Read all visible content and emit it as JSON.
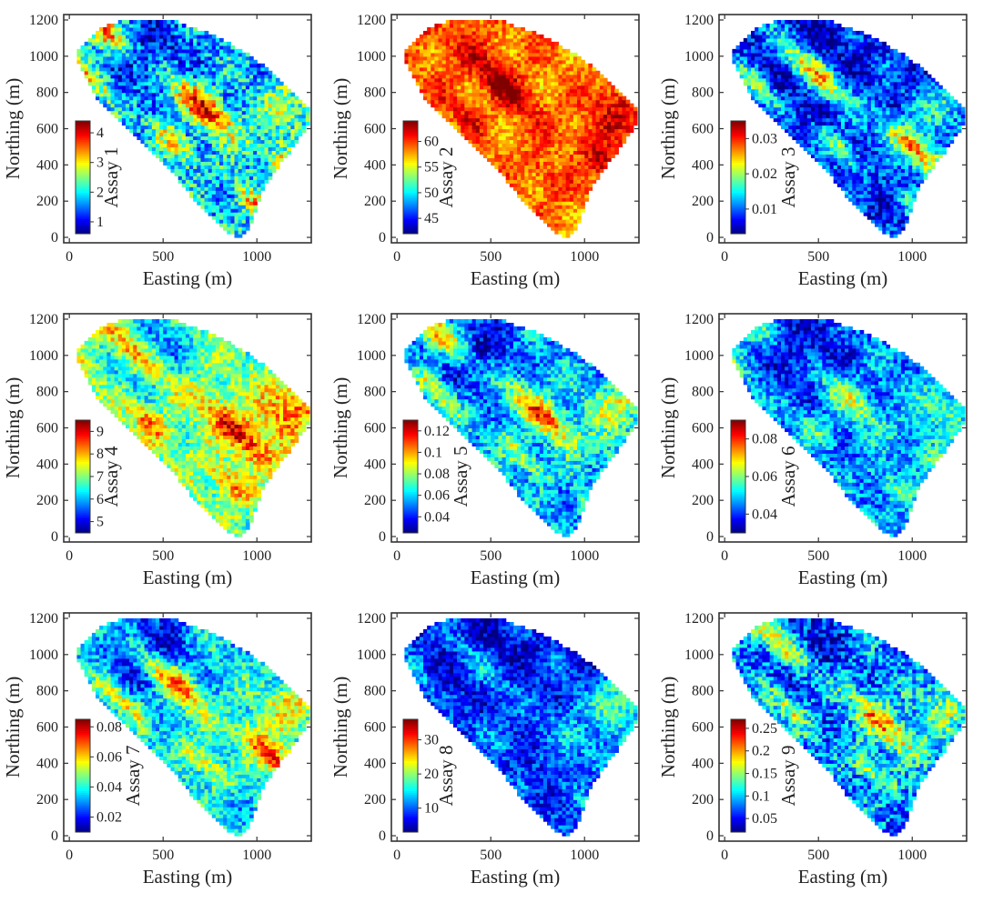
{
  "figure": {
    "colormap": "jet",
    "background": "#ffffff",
    "frame_color": "#333333"
  },
  "chart_data": [
    {
      "type": "heatmap",
      "xlabel": "Easting (m)",
      "ylabel": "Northing (m)",
      "xlim": [
        -30,
        1290
      ],
      "ylim": [
        -30,
        1230
      ],
      "xticks": [
        0,
        500,
        1000
      ],
      "yticks": [
        0,
        200,
        400,
        600,
        800,
        1000,
        1200
      ],
      "colorbar": {
        "label": "Assay 1",
        "range": [
          0.6,
          4.4
        ],
        "ticks": [
          1,
          2,
          3,
          4
        ],
        "tick_labels": [
          "1",
          "2",
          "3",
          "4"
        ]
      },
      "field": {
        "base": 0.32,
        "band": 0.55,
        "hot": 0.22,
        "cold": 0.25,
        "noise": 0.18
      }
    },
    {
      "type": "heatmap",
      "xlabel": "Easting (m)",
      "ylabel": "Northing (m)",
      "xlim": [
        -30,
        1290
      ],
      "ylim": [
        -30,
        1230
      ],
      "xticks": [
        0,
        500,
        1000
      ],
      "yticks": [
        0,
        200,
        400,
        600,
        800,
        1000,
        1200
      ],
      "colorbar": {
        "label": "Assay 2",
        "range": [
          42,
          64
        ],
        "ticks": [
          45,
          50,
          55,
          60
        ],
        "tick_labels": [
          "45",
          "50",
          "55",
          "60"
        ]
      },
      "field": {
        "base": 0.74,
        "band": 0.22,
        "hot": 0.18,
        "cold": -0.05,
        "noise": 0.1
      }
    },
    {
      "type": "heatmap",
      "xlabel": "Easting (m)",
      "ylabel": "Northing (m)",
      "xlim": [
        -30,
        1290
      ],
      "ylim": [
        -30,
        1230
      ],
      "xticks": [
        0,
        500,
        1000
      ],
      "yticks": [
        0,
        200,
        400,
        600,
        800,
        1000,
        1200
      ],
      "colorbar": {
        "label": "Assay 3",
        "range": [
          0.003,
          0.035
        ],
        "ticks": [
          0.01,
          0.02,
          0.03
        ],
        "tick_labels": [
          "0.01",
          "0.02",
          "0.03"
        ]
      },
      "field": {
        "base": 0.16,
        "band": 0.6,
        "hot": 0.25,
        "cold": 0.12,
        "noise": 0.15
      }
    },
    {
      "type": "heatmap",
      "xlabel": "Easting (m)",
      "ylabel": "Northing (m)",
      "xlim": [
        -30,
        1290
      ],
      "ylim": [
        -30,
        1230
      ],
      "xticks": [
        0,
        500,
        1000
      ],
      "yticks": [
        0,
        200,
        400,
        600,
        800,
        1000,
        1200
      ],
      "colorbar": {
        "label": "Assay 4",
        "range": [
          4.5,
          9.5
        ],
        "ticks": [
          5,
          6,
          7,
          8,
          9
        ],
        "tick_labels": [
          "5",
          "6",
          "7",
          "8",
          "9"
        ]
      },
      "field": {
        "base": 0.5,
        "band": 0.42,
        "hot": 0.3,
        "cold": 0.28,
        "noise": 0.14
      }
    },
    {
      "type": "heatmap",
      "xlabel": "Easting (m)",
      "ylabel": "Northing (m)",
      "xlim": [
        -30,
        1290
      ],
      "ylim": [
        -30,
        1230
      ],
      "xticks": [
        0,
        500,
        1000
      ],
      "yticks": [
        0,
        200,
        400,
        600,
        800,
        1000,
        1200
      ],
      "colorbar": {
        "label": "Assay 5",
        "range": [
          0.025,
          0.13
        ],
        "ticks": [
          0.04,
          0.06,
          0.08,
          0.1,
          0.12
        ],
        "tick_labels": [
          "0.04",
          "0.06",
          "0.08",
          "0.1",
          "0.12"
        ]
      },
      "field": {
        "base": 0.3,
        "band": 0.5,
        "hot": 0.28,
        "cold": 0.22,
        "noise": 0.15
      }
    },
    {
      "type": "heatmap",
      "xlabel": "Easting (m)",
      "ylabel": "Northing (m)",
      "xlim": [
        -30,
        1290
      ],
      "ylim": [
        -30,
        1230
      ],
      "xticks": [
        0,
        500,
        1000
      ],
      "yticks": [
        0,
        200,
        400,
        600,
        800,
        1000,
        1200
      ],
      "colorbar": {
        "label": "Assay 6",
        "range": [
          0.03,
          0.09
        ],
        "ticks": [
          0.04,
          0.06,
          0.08
        ],
        "tick_labels": [
          "0.04",
          "0.06",
          "0.08"
        ]
      },
      "field": {
        "base": 0.26,
        "band": 0.3,
        "hot": 0.2,
        "cold": 0.2,
        "noise": 0.14
      }
    },
    {
      "type": "heatmap",
      "xlabel": "Easting (m)",
      "ylabel": "Northing (m)",
      "xlim": [
        -30,
        1290
      ],
      "ylim": [
        -30,
        1230
      ],
      "xticks": [
        0,
        500,
        1000
      ],
      "yticks": [
        0,
        200,
        400,
        600,
        800,
        1000,
        1200
      ],
      "colorbar": {
        "label": "Assay 7",
        "range": [
          0.01,
          0.085
        ],
        "ticks": [
          0.02,
          0.04,
          0.06,
          0.08
        ],
        "tick_labels": [
          "0.02",
          "0.04",
          "0.06",
          "0.08"
        ]
      },
      "field": {
        "base": 0.36,
        "band": 0.5,
        "hot": 0.28,
        "cold": 0.3,
        "noise": 0.14
      }
    },
    {
      "type": "heatmap",
      "xlabel": "Easting (m)",
      "ylabel": "Northing (m)",
      "xlim": [
        -30,
        1290
      ],
      "ylim": [
        -30,
        1230
      ],
      "xticks": [
        0,
        500,
        1000
      ],
      "yticks": [
        0,
        200,
        400,
        600,
        800,
        1000,
        1200
      ],
      "colorbar": {
        "label": "Assay 8",
        "range": [
          3,
          36
        ],
        "ticks": [
          10,
          20,
          30
        ],
        "tick_labels": [
          "10",
          "20",
          "30"
        ]
      },
      "field": {
        "base": 0.16,
        "band": 0.22,
        "hot": 0.35,
        "cold": 0.1,
        "noise": 0.13
      }
    },
    {
      "type": "heatmap",
      "xlabel": "Easting (m)",
      "ylabel": "Northing (m)",
      "xlim": [
        -30,
        1290
      ],
      "ylim": [
        -30,
        1230
      ],
      "xticks": [
        0,
        500,
        1000
      ],
      "yticks": [
        0,
        200,
        400,
        600,
        800,
        1000,
        1200
      ],
      "colorbar": {
        "label": "Assay 9",
        "range": [
          0.02,
          0.27
        ],
        "ticks": [
          0.05,
          0.1,
          0.15,
          0.2,
          0.25
        ],
        "tick_labels": [
          "0.05",
          "0.1",
          "0.15",
          "0.2",
          "0.25"
        ]
      },
      "field": {
        "base": 0.26,
        "band": 0.5,
        "hot": 0.26,
        "cold": 0.18,
        "noise": 0.18
      }
    }
  ]
}
